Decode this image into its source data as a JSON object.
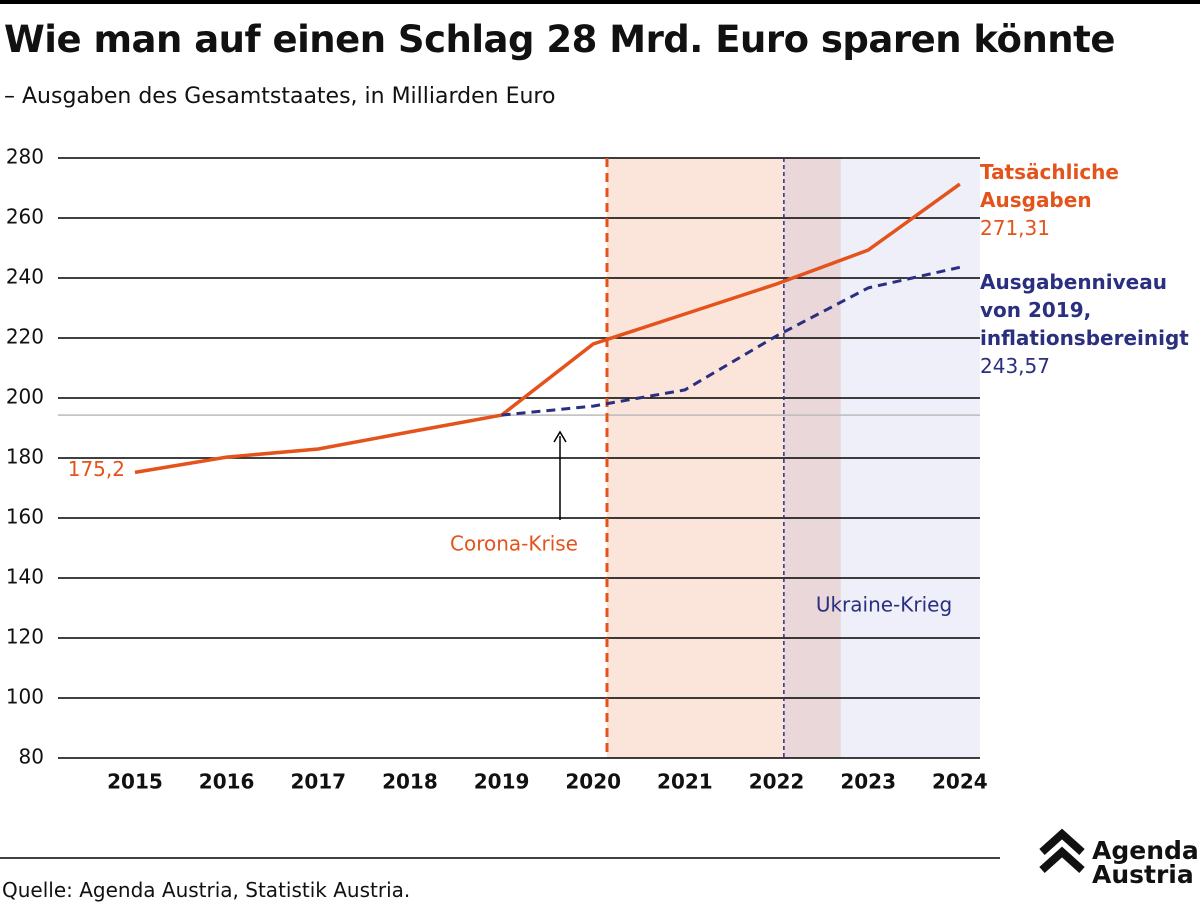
{
  "chart_data": {
    "type": "line",
    "title": "Wie man auf einen Schlag 28 Mrd. Euro sparen könnte",
    "subtitle": "– Ausgaben des Gesamtstaates, in Milliarden Euro",
    "x": [
      2015,
      2016,
      2017,
      2018,
      2019,
      2020,
      2021,
      2022,
      2023,
      2024
    ],
    "series": [
      {
        "name": "Tatsächliche\nAusgaben",
        "color": "#e4531b",
        "dash": false,
        "values": [
          175.2,
          180.3,
          183,
          188.7,
          194.3,
          218,
          228,
          238,
          249.3,
          271.31
        ],
        "value_labels": [
          "175,2",
          null,
          null,
          null,
          null,
          null,
          null,
          null,
          null,
          "271,31"
        ]
      },
      {
        "name": "Ausgabenniveau\nvon 2019,\ninflationsbereinigt",
        "color": "#2b2f7f",
        "dash": true,
        "values": [
          null,
          null,
          null,
          null,
          194.3,
          197.3,
          202.7,
          220.7,
          236.7,
          243.57
        ],
        "value_labels": [
          null,
          null,
          null,
          null,
          null,
          null,
          null,
          null,
          null,
          "243,57"
        ]
      }
    ],
    "xlim": [
      2014.16,
      2024.22
    ],
    "xticks": [
      2015,
      2016,
      2017,
      2018,
      2019,
      2020,
      2021,
      2022,
      2023,
      2024
    ],
    "ylim": [
      80,
      280
    ],
    "yticks": [
      80,
      100,
      120,
      140,
      160,
      180,
      200,
      220,
      240,
      260,
      280
    ],
    "grid": true,
    "reference_line": {
      "y": 194.3,
      "color": "#bbbbbb"
    },
    "shaded_regions": [
      {
        "x": [
          2020.15,
          2022.08
        ],
        "color": "#fbe5da"
      },
      {
        "x": [
          2022.08,
          2024.22
        ],
        "color": "#eeeff8"
      },
      {
        "x": [
          2022.08,
          2022.7
        ],
        "color": "#e9d7d9"
      }
    ],
    "vertical_lines": [
      {
        "x": 2020.15,
        "color": "#e4531b",
        "width": 3,
        "dash": "9,6"
      },
      {
        "x": 2022.08,
        "color": "#2b2f7f",
        "width": 1.5,
        "dash": "4,3"
      }
    ],
    "annotations": [
      "Corona-Krise",
      "Ukraine-Krieg"
    ],
    "source": "Quelle: Agenda Austria, Statistik Austria.",
    "logo": [
      "Agenda",
      "Austria"
    ]
  }
}
